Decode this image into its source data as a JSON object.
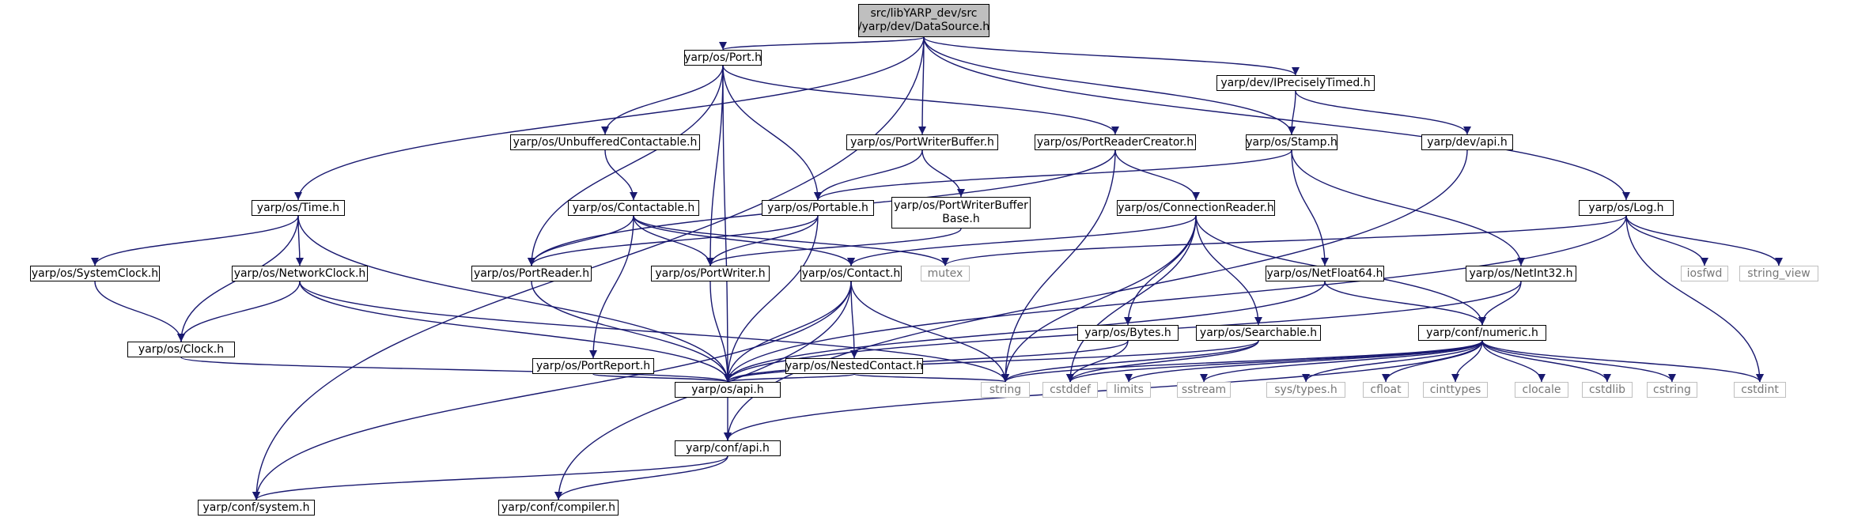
{
  "diagram": {
    "type": "include-dependency-graph",
    "colors": {
      "edge": "#191970",
      "node_border": "#000000",
      "external_border": "#bfbfbf",
      "external_text": "#777777",
      "root_fill": "#bfbfbf"
    },
    "nodes": [
      {
        "id": "ds",
        "label": "src/libYARP_dev/src\n/yarp/dev/DataSource.h",
        "kind": "root"
      },
      {
        "id": "port",
        "label": "yarp/os/Port.h",
        "kind": "header"
      },
      {
        "id": "ipt",
        "label": "yarp/dev/IPreciselyTimed.h",
        "kind": "header"
      },
      {
        "id": "uc",
        "label": "yarp/os/UnbufferedContactable.h",
        "kind": "header"
      },
      {
        "id": "pwb",
        "label": "yarp/os/PortWriterBuffer.h",
        "kind": "header"
      },
      {
        "id": "prc",
        "label": "yarp/os/PortReaderCreator.h",
        "kind": "header"
      },
      {
        "id": "stamp",
        "label": "yarp/os/Stamp.h",
        "kind": "header"
      },
      {
        "id": "devapi",
        "label": "yarp/dev/api.h",
        "kind": "header"
      },
      {
        "id": "time",
        "label": "yarp/os/Time.h",
        "kind": "header"
      },
      {
        "id": "ctb",
        "label": "yarp/os/Contactable.h",
        "kind": "header"
      },
      {
        "id": "port2",
        "label": "yarp/os/Portable.h",
        "kind": "header"
      },
      {
        "id": "pwbb",
        "label": "yarp/os/PortWriterBuffer\nBase.h",
        "kind": "header"
      },
      {
        "id": "cr",
        "label": "yarp/os/ConnectionReader.h",
        "kind": "header"
      },
      {
        "id": "log",
        "label": "yarp/os/Log.h",
        "kind": "header"
      },
      {
        "id": "sc",
        "label": "yarp/os/SystemClock.h",
        "kind": "header"
      },
      {
        "id": "nc",
        "label": "yarp/os/NetworkClock.h",
        "kind": "header"
      },
      {
        "id": "pr",
        "label": "yarp/os/PortReader.h",
        "kind": "header"
      },
      {
        "id": "pw",
        "label": "yarp/os/PortWriter.h",
        "kind": "header"
      },
      {
        "id": "contact",
        "label": "yarp/os/Contact.h",
        "kind": "header"
      },
      {
        "id": "mutex",
        "label": "mutex",
        "kind": "external"
      },
      {
        "id": "nf64",
        "label": "yarp/os/NetFloat64.h",
        "kind": "header"
      },
      {
        "id": "ni32",
        "label": "yarp/os/NetInt32.h",
        "kind": "header"
      },
      {
        "id": "iosfwd",
        "label": "iosfwd",
        "kind": "external"
      },
      {
        "id": "sv",
        "label": "string_view",
        "kind": "external"
      },
      {
        "id": "clock",
        "label": "yarp/os/Clock.h",
        "kind": "header"
      },
      {
        "id": "preport",
        "label": "yarp/os/PortReport.h",
        "kind": "header"
      },
      {
        "id": "ncontact",
        "label": "yarp/os/NestedContact.h",
        "kind": "header"
      },
      {
        "id": "bytes",
        "label": "yarp/os/Bytes.h",
        "kind": "header"
      },
      {
        "id": "search",
        "label": "yarp/os/Searchable.h",
        "kind": "header"
      },
      {
        "id": "numeric",
        "label": "yarp/conf/numeric.h",
        "kind": "header"
      },
      {
        "id": "osapi",
        "label": "yarp/os/api.h",
        "kind": "header"
      },
      {
        "id": "string",
        "label": "string",
        "kind": "external"
      },
      {
        "id": "cstddef",
        "label": "cstddef",
        "kind": "external"
      },
      {
        "id": "limits",
        "label": "limits",
        "kind": "external"
      },
      {
        "id": "sstream",
        "label": "sstream",
        "kind": "external"
      },
      {
        "id": "systypes",
        "label": "sys/types.h",
        "kind": "external"
      },
      {
        "id": "cfloat",
        "label": "cfloat",
        "kind": "external"
      },
      {
        "id": "cinttypes",
        "label": "cinttypes",
        "kind": "external"
      },
      {
        "id": "clocale",
        "label": "clocale",
        "kind": "external"
      },
      {
        "id": "cstdlib",
        "label": "cstdlib",
        "kind": "external"
      },
      {
        "id": "cstring",
        "label": "cstring",
        "kind": "external"
      },
      {
        "id": "cstdint",
        "label": "cstdint",
        "kind": "external"
      },
      {
        "id": "confapi",
        "label": "yarp/conf/api.h",
        "kind": "header"
      },
      {
        "id": "system",
        "label": "yarp/conf/system.h",
        "kind": "header"
      },
      {
        "id": "compiler",
        "label": "yarp/conf/compiler.h",
        "kind": "header"
      }
    ],
    "edges": [
      [
        "ds",
        "port"
      ],
      [
        "ds",
        "ipt"
      ],
      [
        "ds",
        "pwb"
      ],
      [
        "ds",
        "stamp"
      ],
      [
        "ds",
        "time"
      ],
      [
        "ds",
        "log"
      ],
      [
        "ds",
        "system"
      ],
      [
        "port",
        "uc"
      ],
      [
        "port",
        "prc"
      ],
      [
        "port",
        "port2"
      ],
      [
        "port",
        "pr"
      ],
      [
        "port",
        "pw"
      ],
      [
        "port",
        "osapi"
      ],
      [
        "ipt",
        "stamp"
      ],
      [
        "ipt",
        "devapi"
      ],
      [
        "uc",
        "ctb"
      ],
      [
        "pwb",
        "port2"
      ],
      [
        "pwb",
        "pwbb"
      ],
      [
        "prc",
        "pr"
      ],
      [
        "prc",
        "cr"
      ],
      [
        "prc",
        "string"
      ],
      [
        "stamp",
        "port2"
      ],
      [
        "stamp",
        "nf64"
      ],
      [
        "stamp",
        "ni32"
      ],
      [
        "devapi",
        "confapi"
      ],
      [
        "time",
        "sc"
      ],
      [
        "time",
        "nc"
      ],
      [
        "time",
        "clock"
      ],
      [
        "time",
        "osapi"
      ],
      [
        "ctb",
        "pr"
      ],
      [
        "ctb",
        "pw"
      ],
      [
        "ctb",
        "contact"
      ],
      [
        "ctb",
        "mutex"
      ],
      [
        "ctb",
        "preport"
      ],
      [
        "port2",
        "pr"
      ],
      [
        "port2",
        "pw"
      ],
      [
        "port2",
        "osapi"
      ],
      [
        "pwbb",
        "pw"
      ],
      [
        "cr",
        "contact"
      ],
      [
        "cr",
        "bytes"
      ],
      [
        "cr",
        "search"
      ],
      [
        "cr",
        "numeric"
      ],
      [
        "cr",
        "string"
      ],
      [
        "cr",
        "cstddef"
      ],
      [
        "log",
        "mutex"
      ],
      [
        "log",
        "iosfwd"
      ],
      [
        "log",
        "sv"
      ],
      [
        "log",
        "cstdint"
      ],
      [
        "log",
        "osapi"
      ],
      [
        "sc",
        "clock"
      ],
      [
        "nc",
        "clock"
      ],
      [
        "nc",
        "osapi"
      ],
      [
        "nc",
        "string"
      ],
      [
        "pr",
        "osapi"
      ],
      [
        "pw",
        "osapi"
      ],
      [
        "contact",
        "ncontact"
      ],
      [
        "contact",
        "string"
      ],
      [
        "contact",
        "osapi"
      ],
      [
        "contact",
        "compiler"
      ],
      [
        "contact",
        "system"
      ],
      [
        "nf64",
        "numeric"
      ],
      [
        "nf64",
        "osapi"
      ],
      [
        "ni32",
        "numeric"
      ],
      [
        "ni32",
        "osapi"
      ],
      [
        "clock",
        "osapi"
      ],
      [
        "preport",
        "osapi"
      ],
      [
        "ncontact",
        "osapi"
      ],
      [
        "ncontact",
        "string"
      ],
      [
        "bytes",
        "osapi"
      ],
      [
        "bytes",
        "cstddef"
      ],
      [
        "search",
        "osapi"
      ],
      [
        "search",
        "string"
      ],
      [
        "search",
        "cstddef"
      ],
      [
        "numeric",
        "string"
      ],
      [
        "numeric",
        "cstddef"
      ],
      [
        "numeric",
        "limits"
      ],
      [
        "numeric",
        "sstream"
      ],
      [
        "numeric",
        "systypes"
      ],
      [
        "numeric",
        "cfloat"
      ],
      [
        "numeric",
        "cinttypes"
      ],
      [
        "numeric",
        "clocale"
      ],
      [
        "numeric",
        "cstdlib"
      ],
      [
        "numeric",
        "cstring"
      ],
      [
        "numeric",
        "cstdint"
      ],
      [
        "numeric",
        "confapi"
      ],
      [
        "osapi",
        "confapi"
      ],
      [
        "confapi",
        "system"
      ],
      [
        "confapi",
        "compiler"
      ]
    ]
  }
}
